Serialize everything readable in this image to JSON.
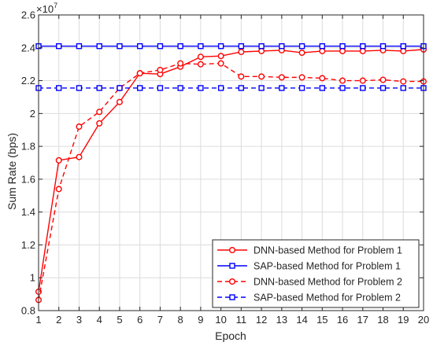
{
  "chart_data": {
    "type": "line",
    "xlabel": "Epoch",
    "ylabel": "Sum Rate (bps)",
    "exponent_label": "×10",
    "exponent_power": "7",
    "x": [
      1,
      2,
      3,
      4,
      5,
      6,
      7,
      8,
      9,
      10,
      11,
      12,
      13,
      14,
      15,
      16,
      17,
      18,
      19,
      20
    ],
    "xlim": [
      1,
      20
    ],
    "ylim": [
      0.8,
      2.6
    ],
    "xticks": [
      "1",
      "2",
      "3",
      "4",
      "5",
      "6",
      "7",
      "8",
      "9",
      "10",
      "11",
      "12",
      "13",
      "14",
      "15",
      "16",
      "17",
      "18",
      "19",
      "20"
    ],
    "yticks": [
      0.8,
      1,
      1.2,
      1.4,
      1.6,
      1.8,
      2,
      2.2,
      2.4,
      2.6
    ],
    "ytick_labels": [
      "0.8",
      "1",
      "1.2",
      "1.4",
      "1.6",
      "1.8",
      "2",
      "2.2",
      "2.4",
      "2.6"
    ],
    "grid": true,
    "legend_position": "bottom-right",
    "series": [
      {
        "name": "DNN-based Method for Problem 1",
        "color": "#ff0000",
        "line": "solid",
        "marker": "circle",
        "values": [
          0.915,
          1.715,
          1.735,
          1.94,
          2.07,
          2.245,
          2.24,
          2.285,
          2.345,
          2.35,
          2.375,
          2.38,
          2.385,
          2.37,
          2.38,
          2.38,
          2.38,
          2.385,
          2.38,
          2.39
        ]
      },
      {
        "name": "SAP-based Method for Problem 1",
        "color": "#0000ff",
        "line": "solid",
        "marker": "square",
        "values": [
          2.41,
          2.41,
          2.41,
          2.41,
          2.41,
          2.41,
          2.41,
          2.41,
          2.41,
          2.41,
          2.41,
          2.41,
          2.41,
          2.41,
          2.41,
          2.41,
          2.41,
          2.41,
          2.41,
          2.41
        ]
      },
      {
        "name": "DNN-based Method for Problem 2",
        "color": "#ff0000",
        "line": "dashed",
        "marker": "circle",
        "values": [
          0.865,
          1.54,
          1.92,
          2.01,
          2.155,
          2.245,
          2.265,
          2.305,
          2.3,
          2.305,
          2.225,
          2.225,
          2.22,
          2.22,
          2.215,
          2.2,
          2.2,
          2.205,
          2.195,
          2.195
        ]
      },
      {
        "name": "SAP-based Method for Problem 2",
        "color": "#0000ff",
        "line": "dashed",
        "marker": "square",
        "values": [
          2.155,
          2.155,
          2.155,
          2.155,
          2.155,
          2.155,
          2.155,
          2.155,
          2.155,
          2.155,
          2.155,
          2.155,
          2.155,
          2.155,
          2.155,
          2.155,
          2.155,
          2.155,
          2.155,
          2.155
        ]
      }
    ]
  }
}
